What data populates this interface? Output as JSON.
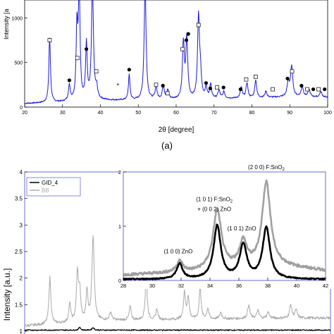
{
  "chart_data": [
    {
      "type": "line",
      "panel_label": "(a)",
      "xlabel": "2θ [degree]",
      "ylabel": "Intensity [a",
      "xlim": [
        20,
        100
      ],
      "ylim": [
        0,
        1200
      ],
      "xticks": [
        "20",
        "30",
        "40",
        "50",
        "60",
        "70",
        "80",
        "90",
        "100"
      ],
      "yticks": [
        "0",
        "500",
        "1000"
      ],
      "series": [
        {
          "color": "#1a1adc",
          "baseline": [
            [
              20,
              40
            ],
            [
              30,
              55
            ],
            [
              40,
              75
            ],
            [
              50,
              75
            ],
            [
              60,
              85
            ],
            [
              70,
              95
            ],
            [
              80,
              100
            ],
            [
              90,
              115
            ],
            [
              100,
              110
            ]
          ],
          "peaks": [
            [
              26.6,
              720,
              0.25
            ],
            [
              31.8,
              170,
              0.3
            ],
            [
              33.8,
              800,
              0.25
            ],
            [
              34.4,
              1300,
              0.25
            ],
            [
              36.3,
              620,
              0.25
            ],
            [
              37.9,
              1300,
              0.3
            ],
            [
              39.0,
              120,
              0.3
            ],
            [
              47.6,
              280,
              0.25
            ],
            [
              51.8,
              1300,
              0.3
            ],
            [
              54.7,
              140,
              0.3
            ],
            [
              56.6,
              160,
              0.3
            ],
            [
              57.8,
              100,
              0.3
            ],
            [
              61.9,
              620,
              0.3
            ],
            [
              62.8,
              660,
              0.3
            ],
            [
              65.9,
              900,
              0.3
            ],
            [
              66.4,
              250,
              0.3
            ],
            [
              67.9,
              110,
              0.3
            ],
            [
              69.1,
              150,
              0.3
            ],
            [
              71.3,
              90,
              0.3
            ],
            [
              72.6,
              70,
              0.3
            ],
            [
              77.2,
              120,
              0.3
            ],
            [
              78.7,
              170,
              0.3
            ],
            [
              81.0,
              200,
              0.3
            ],
            [
              83.7,
              70,
              0.3
            ],
            [
              89.6,
              160,
              0.35
            ],
            [
              90.5,
              330,
              0.35
            ],
            [
              93.3,
              110,
              0.35
            ],
            [
              95.1,
              80,
              0.35
            ],
            [
              98.2,
              60,
              0.35
            ]
          ]
        }
      ],
      "markers": [
        {
          "shape": "square",
          "x": 26.6,
          "y": 750
        },
        {
          "shape": "circle",
          "x": 31.8,
          "y": 300
        },
        {
          "shape": "square",
          "x": 33.9,
          "y": 550
        },
        {
          "shape": "circle",
          "x": 36.3,
          "y": 650
        },
        {
          "shape": "square",
          "x": 38.9,
          "y": 400
        },
        {
          "shape": "star",
          "x": 44.6,
          "y": 240
        },
        {
          "shape": "circle",
          "x": 47.6,
          "y": 420
        },
        {
          "shape": "square",
          "x": 54.7,
          "y": 250
        },
        {
          "shape": "circle",
          "x": 56.5,
          "y": 240
        },
        {
          "shape": "square",
          "x": 57.7,
          "y": 155
        },
        {
          "shape": "square",
          "x": 61.7,
          "y": 650
        },
        {
          "shape": "circle",
          "x": 62.7,
          "y": 750
        },
        {
          "shape": "circle",
          "x": 63.2,
          "y": 820
        },
        {
          "shape": "square",
          "x": 65.9,
          "y": 920
        },
        {
          "shape": "circle",
          "x": 67.9,
          "y": 270
        },
        {
          "shape": "circle",
          "x": 69.0,
          "y": 210
        },
        {
          "shape": "square",
          "x": 70.8,
          "y": 220
        },
        {
          "shape": "circle",
          "x": 72.5,
          "y": 220
        },
        {
          "shape": "circle",
          "x": 77.0,
          "y": 200
        },
        {
          "shape": "square",
          "x": 78.5,
          "y": 310
        },
        {
          "shape": "square",
          "x": 81.0,
          "y": 340
        },
        {
          "shape": "square",
          "x": 85.5,
          "y": 200
        },
        {
          "shape": "circle",
          "x": 89.4,
          "y": 320
        },
        {
          "shape": "square",
          "x": 90.6,
          "y": 400
        },
        {
          "shape": "circle",
          "x": 93.1,
          "y": 240
        },
        {
          "shape": "square",
          "x": 94.6,
          "y": 200
        },
        {
          "shape": "circle",
          "x": 96.2,
          "y": 200
        },
        {
          "shape": "square",
          "x": 97.6,
          "y": 200
        },
        {
          "shape": "circle",
          "x": 99.2,
          "y": 200
        }
      ]
    },
    {
      "type": "line",
      "ylabel": "Intensity [a.u.]",
      "xlim": [
        20,
        100
      ],
      "ylim": [
        1,
        4
      ],
      "yticks": [
        "1",
        "1.5",
        "2",
        "2.5",
        "3",
        "3.5",
        "4"
      ],
      "legend": {
        "position": "top-left",
        "entries": [
          "GID_4",
          "BB"
        ]
      },
      "series": [
        {
          "name": "GID_4",
          "color": "#000000",
          "baseline": [
            [
              20,
              1.02
            ],
            [
              100,
              1.02
            ]
          ],
          "peaks": [
            [
              34.4,
              0.06,
              0.25
            ],
            [
              37.9,
              0.05,
              0.3
            ]
          ]
        },
        {
          "name": "BB",
          "color": "#aaaaaa",
          "baseline": [
            [
              20,
              1.1
            ],
            [
              40,
              1.2
            ],
            [
              60,
              1.22
            ],
            [
              80,
              1.24
            ],
            [
              100,
              1.25
            ]
          ],
          "peaks": [
            [
              26.6,
              0.88,
              0.3
            ],
            [
              31.8,
              0.35,
              0.3
            ],
            [
              33.8,
              0.9,
              0.3
            ],
            [
              34.4,
              0.55,
              0.3
            ],
            [
              36.3,
              0.55,
              0.3
            ],
            [
              37.9,
              1.6,
              0.35
            ],
            [
              42.5,
              0.15,
              0.35
            ],
            [
              47.6,
              0.25,
              0.3
            ],
            [
              51.8,
              0.82,
              0.3
            ],
            [
              54.6,
              0.2,
              0.3
            ],
            [
              61.8,
              0.52,
              0.3
            ],
            [
              62.8,
              0.42,
              0.3
            ],
            [
              65.9,
              0.6,
              0.3
            ],
            [
              67.9,
              0.2,
              0.3
            ],
            [
              71.3,
              0.12,
              0.35
            ],
            [
              78.6,
              0.25,
              0.35
            ],
            [
              81.0,
              0.15,
              0.35
            ],
            [
              83.7,
              0.12,
              0.35
            ],
            [
              89.6,
              0.25,
              0.35
            ],
            [
              91.0,
              0.15,
              0.35
            ]
          ]
        }
      ]
    },
    {
      "type": "line",
      "xlim": [
        28,
        42
      ],
      "ylim": [
        0,
        2
      ],
      "xticks": [
        "28",
        "30",
        "32",
        "34",
        "36",
        "38",
        "40",
        "42"
      ],
      "yticks": [
        "0",
        "1",
        "2"
      ],
      "series": [
        {
          "name": "BB",
          "color": "#a0a0a0",
          "baseline": [
            [
              28,
              0.1
            ],
            [
              33,
              0.16
            ],
            [
              36,
              0.24
            ],
            [
              39,
              0.26
            ],
            [
              42,
              0.18
            ]
          ],
          "peaks": [
            [
              31.9,
              0.2,
              0.25
            ],
            [
              34.5,
              1.08,
              0.35
            ],
            [
              36.3,
              0.45,
              0.3
            ],
            [
              37.9,
              1.55,
              0.35
            ]
          ]
        },
        {
          "name": "GID_4",
          "color": "#000000",
          "baseline": [
            [
              28,
              0.02
            ],
            [
              42,
              0.02
            ]
          ],
          "peaks": [
            [
              31.9,
              0.28,
              0.25
            ],
            [
              34.5,
              0.98,
              0.3
            ],
            [
              36.3,
              0.62,
              0.3
            ],
            [
              37.9,
              0.95,
              0.3
            ]
          ]
        }
      ],
      "annotations": [
        {
          "text": "(2 0 0) F:SnO",
          "sub": "2",
          "x": 37.9,
          "y": 2.05
        },
        {
          "text": "(1 0 1) F:SnO",
          "sub": "2",
          "x": 34.3,
          "y": 1.46
        },
        {
          "text": "+ (0 0 2) ZnO",
          "sub": "",
          "x": 34.3,
          "y": 1.28
        },
        {
          "text": "(1 0 1) ZnO",
          "sub": "",
          "x": 36.2,
          "y": 0.92
        },
        {
          "text": "(1 0 0) ZnO",
          "sub": "",
          "x": 31.8,
          "y": 0.5
        }
      ]
    }
  ]
}
